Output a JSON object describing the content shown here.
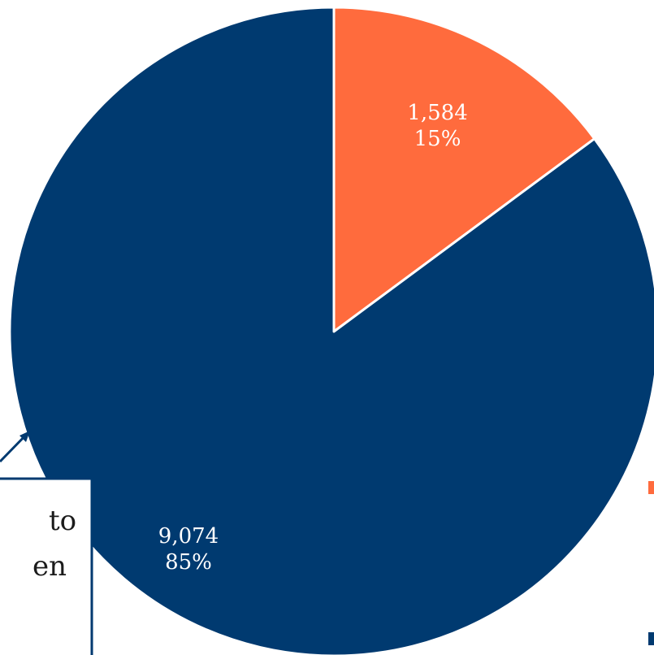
{
  "chart_data": {
    "type": "pie",
    "slices": [
      {
        "value": 1584,
        "value_label": "1,584",
        "percent_label": "15%",
        "color": "#FF6B3D"
      },
      {
        "value": 9074,
        "value_label": "9,074",
        "percent_label": "85%",
        "color": "#003A70"
      }
    ],
    "start_angle_deg": 0,
    "direction": "clockwise",
    "callout": {
      "visible_text": [
        "to",
        "en"
      ],
      "border_color": "#003A70"
    },
    "legend_markers": [
      {
        "color": "#FF6B3D"
      },
      {
        "color": "#003A70"
      }
    ]
  }
}
